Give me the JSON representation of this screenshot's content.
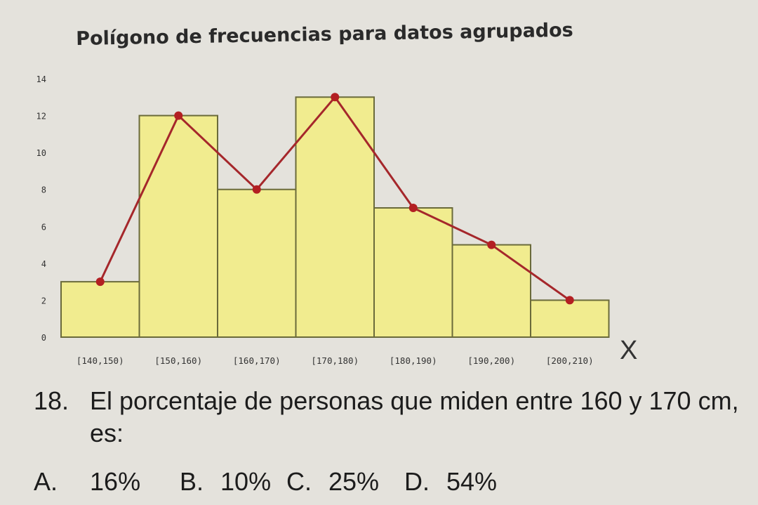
{
  "chart_data": {
    "type": "bar",
    "title": "Polígono de frecuencias para datos agrupados",
    "xlabel": "X",
    "ylabel": "",
    "categories": [
      "[140,150)",
      "[150,160)",
      "[160,170)",
      "[170,180)",
      "[180,190)",
      "[190,200)",
      "[200,210)"
    ],
    "series": [
      {
        "type": "bar",
        "values": [
          3,
          12,
          8,
          13,
          7,
          5,
          2
        ]
      },
      {
        "type": "line",
        "values": [
          3,
          12,
          8,
          13,
          7,
          5,
          2
        ]
      }
    ],
    "y_ticks": [
      "0",
      "2",
      "4",
      "6",
      "8",
      "10",
      "12",
      "14"
    ],
    "ylim": [
      0,
      14
    ],
    "grid": false,
    "colors": {
      "bar": "#f1ec8f",
      "bar_edge": "#6a6a3a",
      "line": "#a5272b",
      "point": "#b31f22"
    }
  },
  "question": {
    "number": "18.",
    "line1": "El porcentaje de personas que miden entre 160 y 170 cm,",
    "line2": "es:",
    "options": [
      {
        "letter": "A.",
        "text": "16%"
      },
      {
        "letter": "B.",
        "text": "10%"
      },
      {
        "letter": "C.",
        "text": "25%"
      },
      {
        "letter": "D.",
        "text": "54%"
      }
    ]
  }
}
